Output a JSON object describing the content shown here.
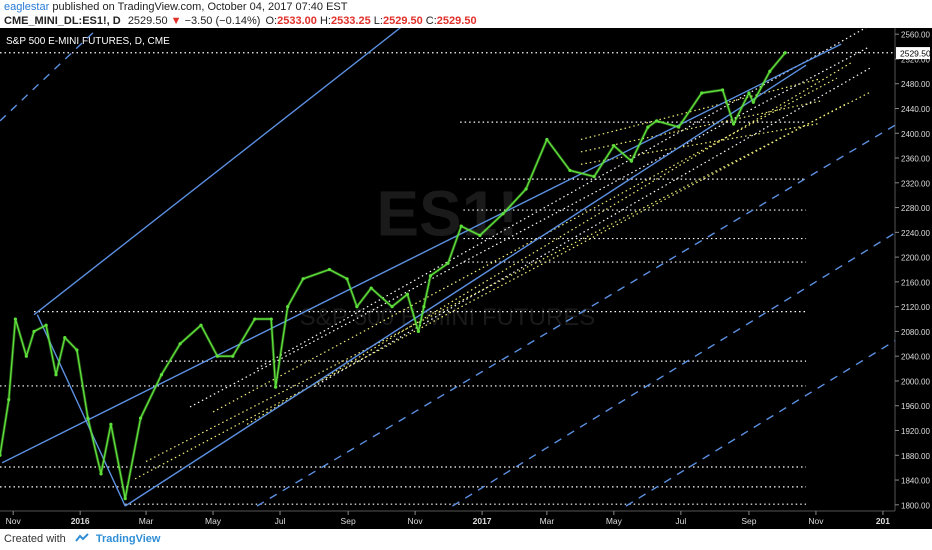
{
  "header": {
    "user": "eaglestar",
    "published": "published on TradingView.com, October 04, 2017 07:40 EST",
    "symbol": "CME_MINI_DL:ES1!, D",
    "last": "2529.50",
    "change_arrow": "▼",
    "change": "−3.50 (−0.14%)",
    "o_label": "O:",
    "o_value": "2533.00",
    "h_label": "H:",
    "h_value": "2533.25",
    "l_label": "L:",
    "l_value": "2529.50",
    "c_label": "C:",
    "c_value": "2529.50"
  },
  "footer": {
    "created_with": "Created with",
    "brand": "TradingView"
  },
  "colors": {
    "background": "#000000",
    "candle": "#5ee03a",
    "channel_line": "#5b8fe0",
    "dotted_level": "#ffffff",
    "dotted_trend": "#f4f07a",
    "price_tag_bg": "#ffffff",
    "watermark": "#1a1a1a"
  },
  "chart_data": {
    "type": "line",
    "title": "S&P 500 E-MINI FUTURES, D, CME",
    "watermark_symbol": "ES1!",
    "watermark_name": "S&P 500 E-MINI FUTURES",
    "xlabel": "",
    "ylabel": "",
    "ylim": [
      1790,
      2570
    ],
    "y_ticks": [
      1800,
      1840,
      1880,
      1920,
      1960,
      2000,
      2040,
      2080,
      2120,
      2160,
      2200,
      2240,
      2280,
      2320,
      2360,
      2400,
      2440,
      2480,
      2520,
      2560
    ],
    "x_range": [
      "2015-10-20",
      "2018-01-12"
    ],
    "x_ticks": [
      {
        "date": "2015-11-01",
        "label": "Nov"
      },
      {
        "date": "2016-01-01",
        "label": "2016"
      },
      {
        "date": "2016-03-01",
        "label": "Mar"
      },
      {
        "date": "2016-05-01",
        "label": "May"
      },
      {
        "date": "2016-07-01",
        "label": "Jul"
      },
      {
        "date": "2016-09-01",
        "label": "Sep"
      },
      {
        "date": "2016-11-01",
        "label": "Nov"
      },
      {
        "date": "2017-01-01",
        "label": "2017"
      },
      {
        "date": "2017-03-01",
        "label": "Mar"
      },
      {
        "date": "2017-05-01",
        "label": "May"
      },
      {
        "date": "2017-07-01",
        "label": "Jul"
      },
      {
        "date": "2017-09-01",
        "label": "Sep"
      },
      {
        "date": "2017-11-01",
        "label": "Nov"
      },
      {
        "date": "2018-01-01",
        "label": "201"
      }
    ],
    "last_price_tag": "2529.50",
    "series": [
      {
        "x": [
          "2015-10-20",
          "2015-10-28",
          "2015-11-03",
          "2015-11-13",
          "2015-11-20",
          "2015-12-01",
          "2015-12-10",
          "2015-12-18",
          "2015-12-29",
          "2016-01-08",
          "2016-01-20",
          "2016-01-29",
          "2016-02-11",
          "2016-02-25",
          "2016-03-15",
          "2016-04-01",
          "2016-04-20",
          "2016-05-05",
          "2016-05-19",
          "2016-06-08",
          "2016-06-23",
          "2016-06-27",
          "2016-07-08",
          "2016-07-22",
          "2016-08-15",
          "2016-08-31",
          "2016-09-09",
          "2016-09-22",
          "2016-10-11",
          "2016-10-25",
          "2016-11-04",
          "2016-11-09",
          "2016-11-15",
          "2016-12-01",
          "2016-12-13",
          "2016-12-30",
          "2017-01-20",
          "2017-02-10",
          "2017-03-01",
          "2017-03-22",
          "2017-04-13",
          "2017-05-01",
          "2017-05-17",
          "2017-06-01",
          "2017-06-09",
          "2017-06-29",
          "2017-07-20",
          "2017-08-08",
          "2017-08-18",
          "2017-09-01",
          "2017-09-05",
          "2017-09-20",
          "2017-10-04"
        ],
        "y": [
          1880,
          1970,
          2100,
          2040,
          2080,
          2090,
          2010,
          2070,
          2050,
          1940,
          1850,
          1930,
          1810,
          1940,
          2010,
          2060,
          2090,
          2040,
          2040,
          2100,
          2100,
          1990,
          2120,
          2165,
          2180,
          2165,
          2120,
          2150,
          2120,
          2140,
          2080,
          2120,
          2170,
          2190,
          2250,
          2235,
          2270,
          2310,
          2390,
          2340,
          2330,
          2380,
          2355,
          2410,
          2420,
          2410,
          2465,
          2470,
          2415,
          2465,
          2450,
          2500,
          2530
        ]
      }
    ],
    "channel_lines": [
      {
        "style": "solid",
        "from": [
          "2015-10-22",
          1868
        ],
        "to": [
          "2017-11-24",
          2544
        ]
      },
      {
        "style": "solid",
        "from": [
          "2015-11-20",
          2107
        ],
        "to": [
          "2016-10-24",
          2578
        ]
      },
      {
        "style": "solid",
        "from": [
          "2016-02-11",
          1798
        ],
        "to": [
          "2017-10-23",
          2510
        ]
      },
      {
        "style": "solid",
        "from": [
          "2015-11-23",
          2107
        ],
        "to": [
          "2016-02-11",
          1798
        ]
      },
      {
        "style": "dashed",
        "from": [
          "2015-10-20",
          2420
        ],
        "to": [
          "2016-01-22",
          2578
        ]
      },
      {
        "style": "dashed",
        "from": [
          "2016-06-10",
          1798
        ],
        "to": [
          "2018-01-12",
          2413
        ]
      },
      {
        "style": "dashed",
        "from": [
          "2016-12-05",
          1798
        ],
        "to": [
          "2018-01-12",
          2239
        ]
      },
      {
        "style": "dashed",
        "from": [
          "2017-05-12",
          1798
        ],
        "to": [
          "2018-01-12",
          2065
        ]
      }
    ],
    "horizontal_levels": [
      {
        "y": 2112,
        "from": "2015-11-20",
        "to": "2017-10-23"
      },
      {
        "y": 2032,
        "from": "2016-03-15",
        "to": "2017-10-23"
      },
      {
        "y": 1992,
        "from": "2015-10-20",
        "to": "2017-10-23"
      },
      {
        "y": 1861,
        "from": "2015-10-20",
        "to": "2017-10-23"
      },
      {
        "y": 1829,
        "from": "2015-10-20",
        "to": "2017-10-23"
      },
      {
        "y": 1801,
        "from": "2016-02-11",
        "to": "2017-10-23"
      },
      {
        "y": 2418,
        "from": "2016-12-12",
        "to": "2017-10-23"
      },
      {
        "y": 2326,
        "from": "2016-12-12",
        "to": "2017-10-23"
      },
      {
        "y": 2276,
        "from": "2016-12-15",
        "to": "2017-10-23"
      },
      {
        "y": 2230,
        "from": "2016-12-15",
        "to": "2017-10-23"
      },
      {
        "y": 2192,
        "from": "2016-12-15",
        "to": "2017-10-23"
      },
      {
        "y": 2530,
        "from": "2015-10-20",
        "to": "2018-01-12"
      }
    ],
    "trend_dotted_lines": [
      {
        "color": "white",
        "from": [
          "2016-06-10",
          2020
        ],
        "to": [
          "2017-12-20",
          2574
        ]
      },
      {
        "color": "white",
        "from": [
          "2016-04-10",
          1958
        ],
        "to": [
          "2017-12-20",
          2540
        ]
      },
      {
        "color": "white",
        "from": [
          "2016-08-01",
          1991
        ],
        "to": [
          "2017-12-20",
          2505
        ]
      },
      {
        "color": "yellow",
        "from": [
          "2016-03-01",
          1870
        ],
        "to": [
          "2017-12-20",
          2466
        ]
      },
      {
        "color": "yellow",
        "from": [
          "2016-05-01",
          1950
        ],
        "to": [
          "2017-11-20",
          2489
        ]
      },
      {
        "color": "yellow",
        "from": [
          "2016-02-20",
          1842
        ],
        "to": [
          "2017-11-30",
          2449
        ]
      },
      {
        "color": "yellow",
        "from": [
          "2016-06-01",
          1930
        ],
        "to": [
          "2017-12-05",
          2516
        ]
      },
      {
        "color": "yellow",
        "from": [
          "2017-04-01",
          2390
        ],
        "to": [
          "2017-11-05",
          2488
        ]
      },
      {
        "color": "yellow",
        "from": [
          "2017-04-01",
          2370
        ],
        "to": [
          "2017-11-05",
          2452
        ]
      },
      {
        "color": "yellow",
        "from": [
          "2017-04-01",
          2350
        ],
        "to": [
          "2017-11-05",
          2416
        ]
      }
    ],
    "grid": false,
    "legend": "none"
  }
}
